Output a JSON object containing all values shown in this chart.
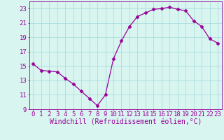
{
  "x": [
    0,
    1,
    2,
    3,
    4,
    5,
    6,
    7,
    8,
    9,
    10,
    11,
    12,
    13,
    14,
    15,
    16,
    17,
    18,
    19,
    20,
    21,
    22,
    23
  ],
  "y": [
    15.3,
    14.4,
    14.3,
    14.2,
    13.3,
    12.5,
    11.5,
    10.5,
    9.5,
    11.0,
    16.0,
    18.5,
    20.5,
    21.9,
    22.4,
    22.9,
    23.0,
    23.2,
    22.9,
    22.7,
    21.3,
    20.5,
    18.8,
    18.2
  ],
  "line_color": "#990099",
  "marker": "D",
  "marker_size": 2.5,
  "bg_color": "#d8f5f0",
  "grid_color": "#aadddd",
  "axis_color": "#990099",
  "tick_label_color": "#990099",
  "xlabel": "Windchill (Refroidissement éolien,°C)",
  "xlabel_color": "#990099",
  "ylim": [
    9,
    24
  ],
  "yticks": [
    9,
    11,
    13,
    15,
    17,
    19,
    21,
    23
  ],
  "xlim": [
    -0.5,
    23.5
  ],
  "xticks": [
    0,
    1,
    2,
    3,
    4,
    5,
    6,
    7,
    8,
    9,
    10,
    11,
    12,
    13,
    14,
    15,
    16,
    17,
    18,
    19,
    20,
    21,
    22,
    23
  ],
  "font_size": 6.5,
  "xlabel_font_size": 7.0
}
